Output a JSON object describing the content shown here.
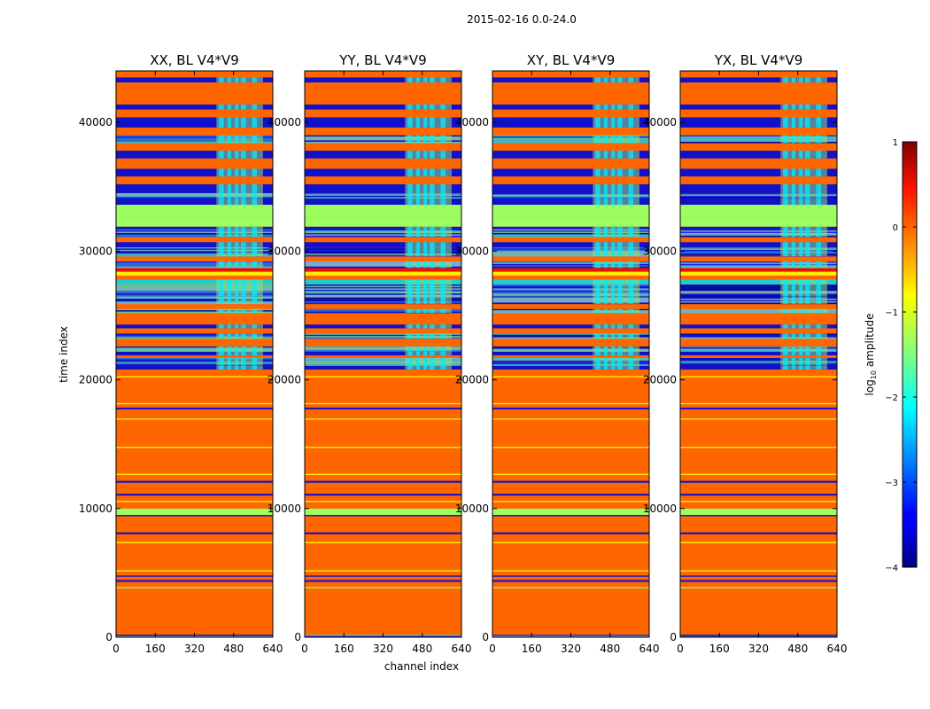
{
  "chart_data": {
    "type": "heatmap",
    "suptitle": "2015-02-16 0.0-24.0",
    "xlabel": "channel index",
    "ylabel": "time index",
    "x_range": [
      0,
      640
    ],
    "y_range": [
      0,
      44000
    ],
    "x_ticks": [
      "0",
      "160",
      "320",
      "480",
      "640"
    ],
    "x_tick_values": [
      0,
      160,
      320,
      480,
      640
    ],
    "y_ticks": [
      "0",
      "10000",
      "20000",
      "30000",
      "40000"
    ],
    "y_tick_values": [
      0,
      10000,
      20000,
      30000,
      40000
    ],
    "colorbar": {
      "label_prefix": "log",
      "label_sub": "10",
      "label_suffix": " amplitude",
      "range": [
        -4,
        1
      ],
      "ticks": [
        "1",
        "0",
        "−1",
        "−2",
        "−3",
        "−4"
      ],
      "tick_values": [
        1,
        0,
        -1,
        -2,
        -3,
        -4
      ],
      "colormap": "jet"
    },
    "panels": [
      {
        "title": "XX, BL V4*V9",
        "pol": "XX"
      },
      {
        "title": "YY, BL V4*V9",
        "pol": "YY"
      },
      {
        "title": "XY, BL V4*V9",
        "pol": "XY"
      },
      {
        "title": "YX, BL V4*V9",
        "pol": "YX"
      }
    ],
    "bands": [
      {
        "y0": 0,
        "y1": 200,
        "type": "mix"
      },
      {
        "y0": 200,
        "y1": 3800,
        "type": "o"
      },
      {
        "y0": 3800,
        "y1": 3900,
        "type": "g"
      },
      {
        "y0": 3900,
        "y1": 4300,
        "type": "o"
      },
      {
        "y0": 4300,
        "y1": 4450,
        "type": "d"
      },
      {
        "y0": 4450,
        "y1": 4700,
        "type": "o"
      },
      {
        "y0": 4700,
        "y1": 4800,
        "type": "d"
      },
      {
        "y0": 4800,
        "y1": 5100,
        "type": "o"
      },
      {
        "y0": 5100,
        "y1": 5200,
        "type": "y"
      },
      {
        "y0": 5200,
        "y1": 7300,
        "type": "o"
      },
      {
        "y0": 7300,
        "y1": 7400,
        "type": "y"
      },
      {
        "y0": 7400,
        "y1": 8000,
        "type": "o"
      },
      {
        "y0": 8000,
        "y1": 8150,
        "type": "d"
      },
      {
        "y0": 8150,
        "y1": 9300,
        "type": "o"
      },
      {
        "y0": 9300,
        "y1": 9400,
        "type": "o"
      },
      {
        "y0": 9400,
        "y1": 9500,
        "type": "d"
      },
      {
        "y0": 9500,
        "y1": 10000,
        "type": "g"
      },
      {
        "y0": 10000,
        "y1": 10500,
        "type": "o"
      },
      {
        "y0": 10500,
        "y1": 10600,
        "type": "y"
      },
      {
        "y0": 10600,
        "y1": 11000,
        "type": "o"
      },
      {
        "y0": 11000,
        "y1": 11150,
        "type": "d"
      },
      {
        "y0": 11150,
        "y1": 12000,
        "type": "o"
      },
      {
        "y0": 12000,
        "y1": 12150,
        "type": "d"
      },
      {
        "y0": 12150,
        "y1": 12600,
        "type": "o"
      },
      {
        "y0": 12600,
        "y1": 12700,
        "type": "y"
      },
      {
        "y0": 12700,
        "y1": 14700,
        "type": "o"
      },
      {
        "y0": 14700,
        "y1": 14800,
        "type": "y"
      },
      {
        "y0": 14800,
        "y1": 16900,
        "type": "o"
      },
      {
        "y0": 16900,
        "y1": 17000,
        "type": "y"
      },
      {
        "y0": 17000,
        "y1": 17700,
        "type": "o"
      },
      {
        "y0": 17700,
        "y1": 17850,
        "type": "d"
      },
      {
        "y0": 17850,
        "y1": 18100,
        "type": "o"
      },
      {
        "y0": 18100,
        "y1": 18200,
        "type": "y"
      },
      {
        "y0": 18200,
        "y1": 20200,
        "type": "o"
      },
      {
        "y0": 20200,
        "y1": 20300,
        "type": "y"
      },
      {
        "y0": 20300,
        "y1": 20800,
        "type": "o"
      },
      {
        "y0": 20800,
        "y1": 21100,
        "type": "d"
      },
      {
        "y0": 21100,
        "y1": 21700,
        "type": "mix"
      },
      {
        "y0": 21700,
        "y1": 21900,
        "type": "o"
      },
      {
        "y0": 21900,
        "y1": 22200,
        "type": "d"
      },
      {
        "y0": 22200,
        "y1": 22600,
        "type": "mix"
      },
      {
        "y0": 22600,
        "y1": 23200,
        "type": "o"
      },
      {
        "y0": 23200,
        "y1": 23600,
        "type": "mix"
      },
      {
        "y0": 23600,
        "y1": 24000,
        "type": "o"
      },
      {
        "y0": 24000,
        "y1": 24300,
        "type": "d"
      },
      {
        "y0": 24300,
        "y1": 25200,
        "type": "o"
      },
      {
        "y0": 25200,
        "y1": 25500,
        "type": "mix"
      },
      {
        "y0": 25500,
        "y1": 25900,
        "type": "o"
      },
      {
        "y0": 25900,
        "y1": 26500,
        "type": "mix"
      },
      {
        "y0": 26500,
        "y1": 27400,
        "type": "mix"
      },
      {
        "y0": 27400,
        "y1": 27800,
        "type": "cy"
      },
      {
        "y0": 27800,
        "y1": 28100,
        "type": "o"
      },
      {
        "y0": 28100,
        "y1": 28400,
        "type": "y"
      },
      {
        "y0": 28400,
        "y1": 28700,
        "type": "r"
      },
      {
        "y0": 28700,
        "y1": 29200,
        "type": "mix"
      },
      {
        "y0": 29200,
        "y1": 29600,
        "type": "o"
      },
      {
        "y0": 29600,
        "y1": 30300,
        "type": "mix"
      },
      {
        "y0": 30300,
        "y1": 30700,
        "type": "d"
      },
      {
        "y0": 30700,
        "y1": 31100,
        "type": "o"
      },
      {
        "y0": 31100,
        "y1": 31700,
        "type": "mix"
      },
      {
        "y0": 31700,
        "y1": 31900,
        "type": "d"
      },
      {
        "y0": 31900,
        "y1": 32700,
        "type": "g"
      },
      {
        "y0": 32700,
        "y1": 33600,
        "type": "g"
      },
      {
        "y0": 33600,
        "y1": 34100,
        "type": "d"
      },
      {
        "y0": 34100,
        "y1": 34500,
        "type": "mix"
      },
      {
        "y0": 34500,
        "y1": 35200,
        "type": "d"
      },
      {
        "y0": 35200,
        "y1": 35800,
        "type": "o"
      },
      {
        "y0": 35800,
        "y1": 36400,
        "type": "d"
      },
      {
        "y0": 36400,
        "y1": 37200,
        "type": "o"
      },
      {
        "y0": 37200,
        "y1": 37800,
        "type": "d"
      },
      {
        "y0": 37800,
        "y1": 38400,
        "type": "o"
      },
      {
        "y0": 38400,
        "y1": 39000,
        "type": "mix"
      },
      {
        "y0": 39000,
        "y1": 39600,
        "type": "o"
      },
      {
        "y0": 39600,
        "y1": 40400,
        "type": "d"
      },
      {
        "y0": 40400,
        "y1": 41000,
        "type": "o"
      },
      {
        "y0": 41000,
        "y1": 41400,
        "type": "d"
      },
      {
        "y0": 41400,
        "y1": 42200,
        "type": "o"
      },
      {
        "y0": 42200,
        "y1": 43100,
        "type": "o"
      },
      {
        "y0": 43100,
        "y1": 43500,
        "type": "d"
      },
      {
        "y0": 43500,
        "y1": 44000,
        "type": "o"
      }
    ],
    "rfi_channel_ranges": [
      [
        420,
        440
      ],
      [
        455,
        470
      ],
      [
        485,
        500
      ],
      [
        510,
        530
      ],
      [
        555,
        575
      ]
    ],
    "rfi_start_channel": 410,
    "rfi_end_channel": 600
  }
}
